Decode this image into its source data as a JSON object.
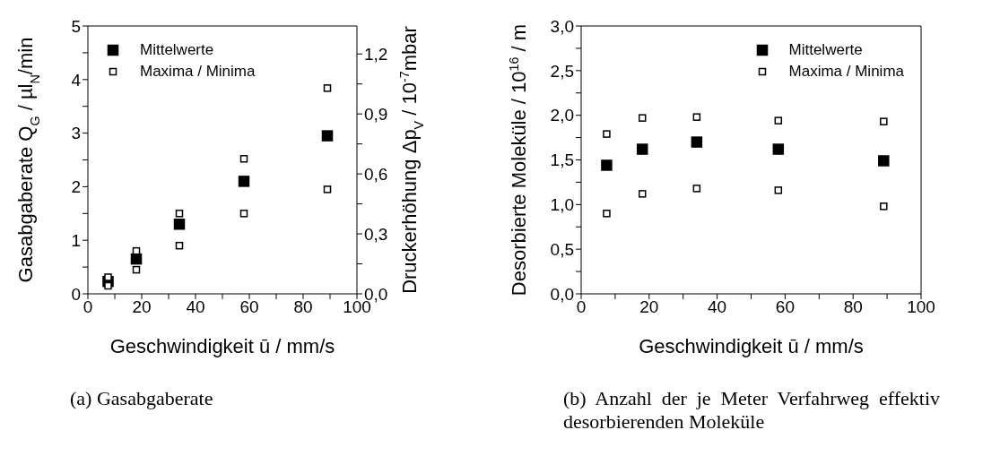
{
  "chart_data": [
    {
      "type": "scatter",
      "xlabel": "Geschwindigkeit ū / mm/s",
      "ylabel": "Gasabgaberate Q$_{G}$ / µl$_{N}$/min",
      "y2label": "Druckerhöhung Δp$_{V}$ / 10$^{-7}$mbar",
      "xlim": [
        0,
        100
      ],
      "xticks": [
        0,
        {
          "value": 10,
          "label": null
        },
        20,
        {
          "value": 30,
          "label": null
        },
        40,
        {
          "value": 50,
          "label": null
        },
        60,
        {
          "value": 70,
          "label": null
        },
        80,
        {
          "value": 90,
          "label": null
        },
        100
      ],
      "ylim": [
        0,
        5
      ],
      "yticks": [
        0,
        {
          "value": 0.5,
          "label": null
        },
        1,
        {
          "value": 1.5,
          "label": null
        },
        2,
        {
          "value": 2.5,
          "label": null
        },
        3,
        {
          "value": 3.5,
          "label": null
        },
        4,
        {
          "value": 4.5,
          "label": null
        },
        5
      ],
      "y2lim": [
        0,
        1.34
      ],
      "y2ticks": [
        {
          "value": 0,
          "label": "0,0"
        },
        {
          "value": 0.15,
          "label": null
        },
        {
          "value": 0.3,
          "label": "0,3"
        },
        {
          "value": 0.45,
          "label": null
        },
        {
          "value": 0.6,
          "label": "0,6"
        },
        {
          "value": 0.75,
          "label": null
        },
        {
          "value": 0.9,
          "label": "0,9"
        },
        {
          "value": 1.05,
          "label": null
        },
        {
          "value": 1.2,
          "label": "1,2"
        }
      ],
      "marker": "square",
      "grid": false,
      "legend": "top left",
      "series": [
        {
          "name": "Mittelwerte",
          "color": "#000000",
          "x": [
            7.5,
            18,
            34,
            58,
            89
          ],
          "values": [
            0.23,
            0.65,
            1.3,
            2.1,
            2.95
          ]
        },
        {
          "name": "Maxima / Minima",
          "color": "#000000",
          "x": [
            7.5,
            18,
            34,
            58,
            89,
            7.5,
            18,
            34,
            58,
            89
          ],
          "values": [
            0.31,
            0.8,
            1.5,
            2.52,
            3.84,
            0.15,
            0.45,
            0.9,
            1.5,
            1.95
          ]
        }
      ],
      "annotations": [
        "(a)  Gasabgaberate"
      ]
    },
    {
      "type": "scatter",
      "xlabel": "Geschwindigkeit ū / mm/s",
      "ylabel": "Desorbierte Moleküle / 10$^{16}$ / m",
      "xlim": [
        0,
        100
      ],
      "xticks": [
        0,
        {
          "value": 10,
          "label": null
        },
        20,
        {
          "value": 30,
          "label": null
        },
        40,
        {
          "value": 50,
          "label": null
        },
        60,
        {
          "value": 70,
          "label": null
        },
        80,
        {
          "value": 90,
          "label": null
        },
        100
      ],
      "ylim": [
        0,
        3
      ],
      "yticks": [
        {
          "value": 0,
          "label": "0,0"
        },
        {
          "value": 0.25,
          "label": null
        },
        {
          "value": 0.5,
          "label": "0,5"
        },
        {
          "value": 0.75,
          "label": null
        },
        {
          "value": 1,
          "label": "1,0"
        },
        {
          "value": 1.25,
          "label": null
        },
        {
          "value": 1.5,
          "label": "1,5"
        },
        {
          "value": 1.75,
          "label": null
        },
        {
          "value": 2,
          "label": "2,0"
        },
        {
          "value": 2.25,
          "label": null
        },
        {
          "value": 2.5,
          "label": "2,5"
        },
        {
          "value": 2.75,
          "label": null
        },
        {
          "value": 3,
          "label": "3,0"
        }
      ],
      "marker": "square",
      "grid": false,
      "legend": "top right",
      "series": [
        {
          "name": "Mittelwerte",
          "color": "#000000",
          "x": [
            7.5,
            18,
            34,
            58,
            89
          ],
          "values": [
            1.44,
            1.62,
            1.7,
            1.62,
            1.49
          ]
        },
        {
          "name": "Maxima / Minima",
          "color": "#000000",
          "x": [
            7.5,
            18,
            34,
            58,
            89,
            7.5,
            18,
            34,
            58,
            89
          ],
          "values": [
            1.79,
            1.97,
            1.98,
            1.94,
            1.93,
            0.9,
            1.12,
            1.18,
            1.16,
            0.98
          ]
        }
      ],
      "annotations": [
        "(b)  Anzahl der je Meter Verfahrweg effektiv desorbierenden Moleküle"
      ]
    }
  ]
}
